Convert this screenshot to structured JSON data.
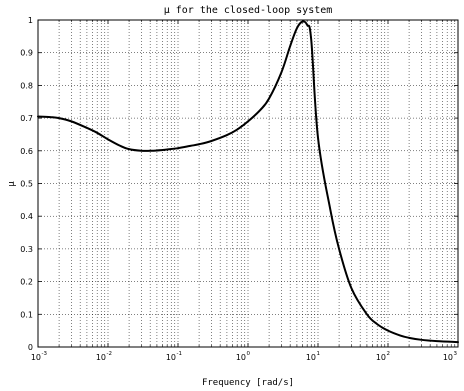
{
  "chart_data": {
    "type": "line",
    "title": "μ for the closed-loop system",
    "xlabel": "Frequency [rad/s]",
    "ylabel": "μ",
    "xscale": "log",
    "xlim": [
      0.001,
      1000
    ],
    "ylim": [
      0,
      1
    ],
    "grid": true,
    "x_ticks": [
      {
        "base": "10",
        "exp": "-3",
        "value": 0.001
      },
      {
        "base": "10",
        "exp": "-2",
        "value": 0.01
      },
      {
        "base": "10",
        "exp": "-1",
        "value": 0.1
      },
      {
        "base": "10",
        "exp": "0",
        "value": 1
      },
      {
        "base": "10",
        "exp": "1",
        "value": 10
      },
      {
        "base": "10",
        "exp": "2",
        "value": 100
      },
      {
        "base": "10",
        "exp": "3",
        "value": 1000
      }
    ],
    "y_ticks": [
      "0",
      "0.1",
      "0.2",
      "0.3",
      "0.4",
      "0.5",
      "0.6",
      "0.7",
      "0.8",
      "0.9",
      "1"
    ],
    "series": [
      {
        "color": "#000000",
        "x": [
          0.001,
          0.0015,
          0.002,
          0.003,
          0.005,
          0.007,
          0.01,
          0.015,
          0.02,
          0.03,
          0.04,
          0.05,
          0.07,
          0.1,
          0.15,
          0.2,
          0.3,
          0.5,
          0.7,
          1,
          1.5,
          2,
          3,
          4,
          5,
          6,
          7,
          8,
          10,
          15,
          20,
          30,
          50,
          70,
          100,
          150,
          200,
          300,
          500,
          1000
        ],
        "y": [
          0.705,
          0.703,
          0.7,
          0.69,
          0.67,
          0.655,
          0.635,
          0.615,
          0.605,
          0.6,
          0.6,
          0.601,
          0.604,
          0.608,
          0.615,
          0.62,
          0.63,
          0.648,
          0.665,
          0.69,
          0.725,
          0.76,
          0.84,
          0.92,
          0.975,
          0.995,
          0.985,
          0.94,
          0.64,
          0.42,
          0.3,
          0.18,
          0.1,
          0.07,
          0.05,
          0.035,
          0.028,
          0.022,
          0.018,
          0.015
        ]
      }
    ]
  }
}
